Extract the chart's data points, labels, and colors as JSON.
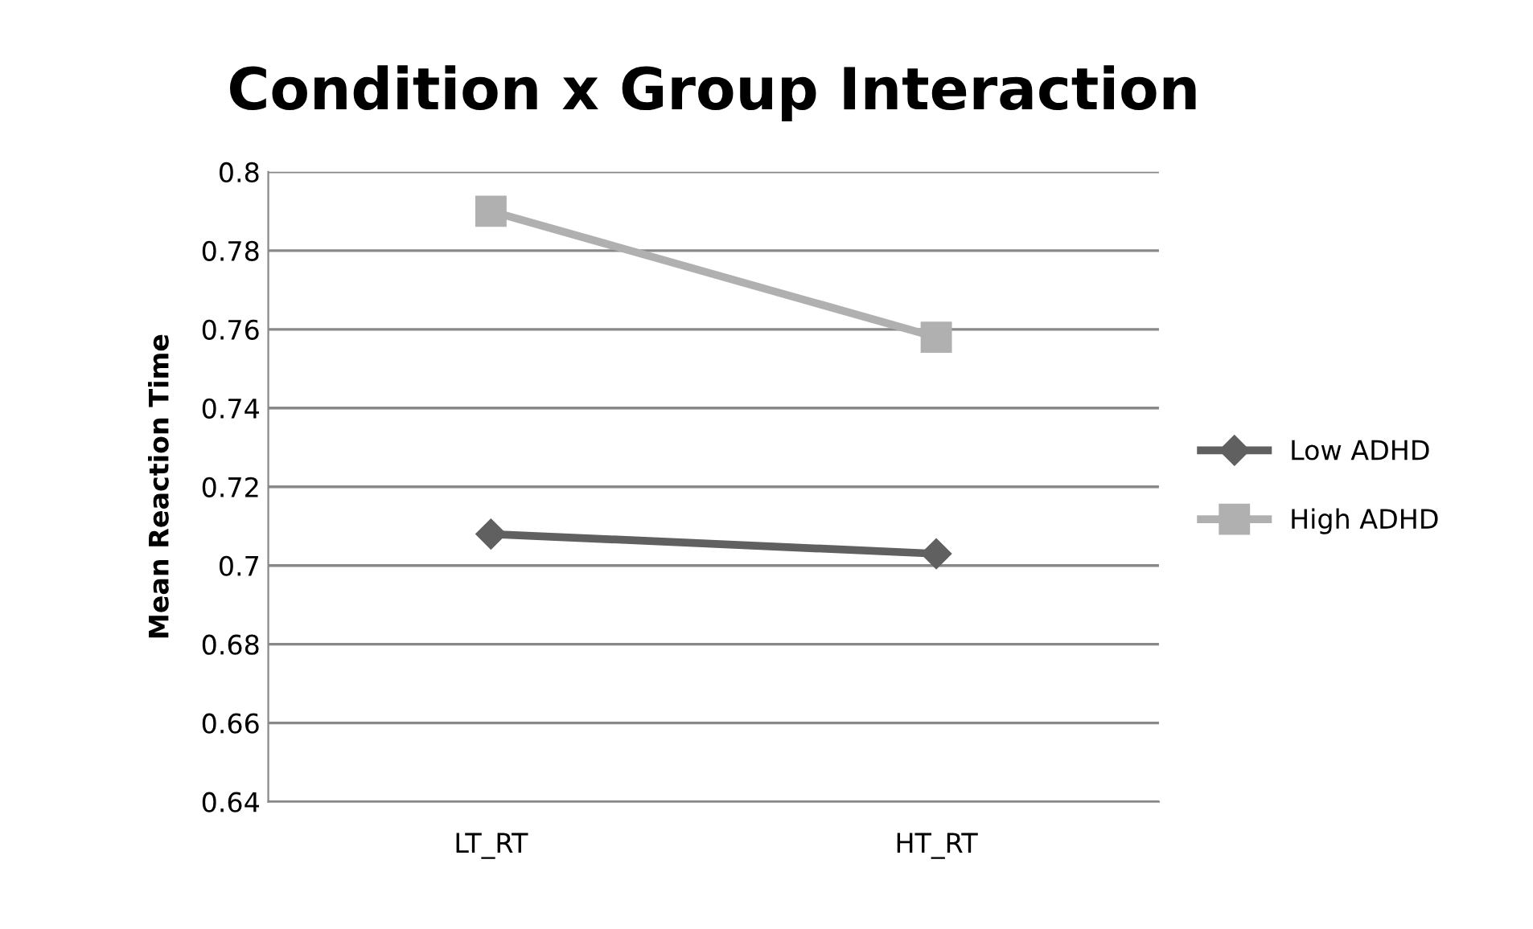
{
  "chart_data": {
    "type": "line",
    "title": "Condition x Group Interaction",
    "ylabel": "Mean Reaction Time",
    "categories": [
      "LT_RT",
      "HT_RT"
    ],
    "series": [
      {
        "name": "Low ADHD",
        "color": "#606060",
        "marker": "diamond",
        "values": [
          0.708,
          0.703
        ]
      },
      {
        "name": "High ADHD",
        "color": "#b0b0b0",
        "marker": "square",
        "values": [
          0.79,
          0.758
        ]
      }
    ],
    "ylim": [
      0.64,
      0.8
    ],
    "yticks": [
      0.64,
      0.66,
      0.68,
      0.7,
      0.72,
      0.74,
      0.76,
      0.78,
      0.8
    ],
    "grid": "y",
    "legend": "right"
  }
}
